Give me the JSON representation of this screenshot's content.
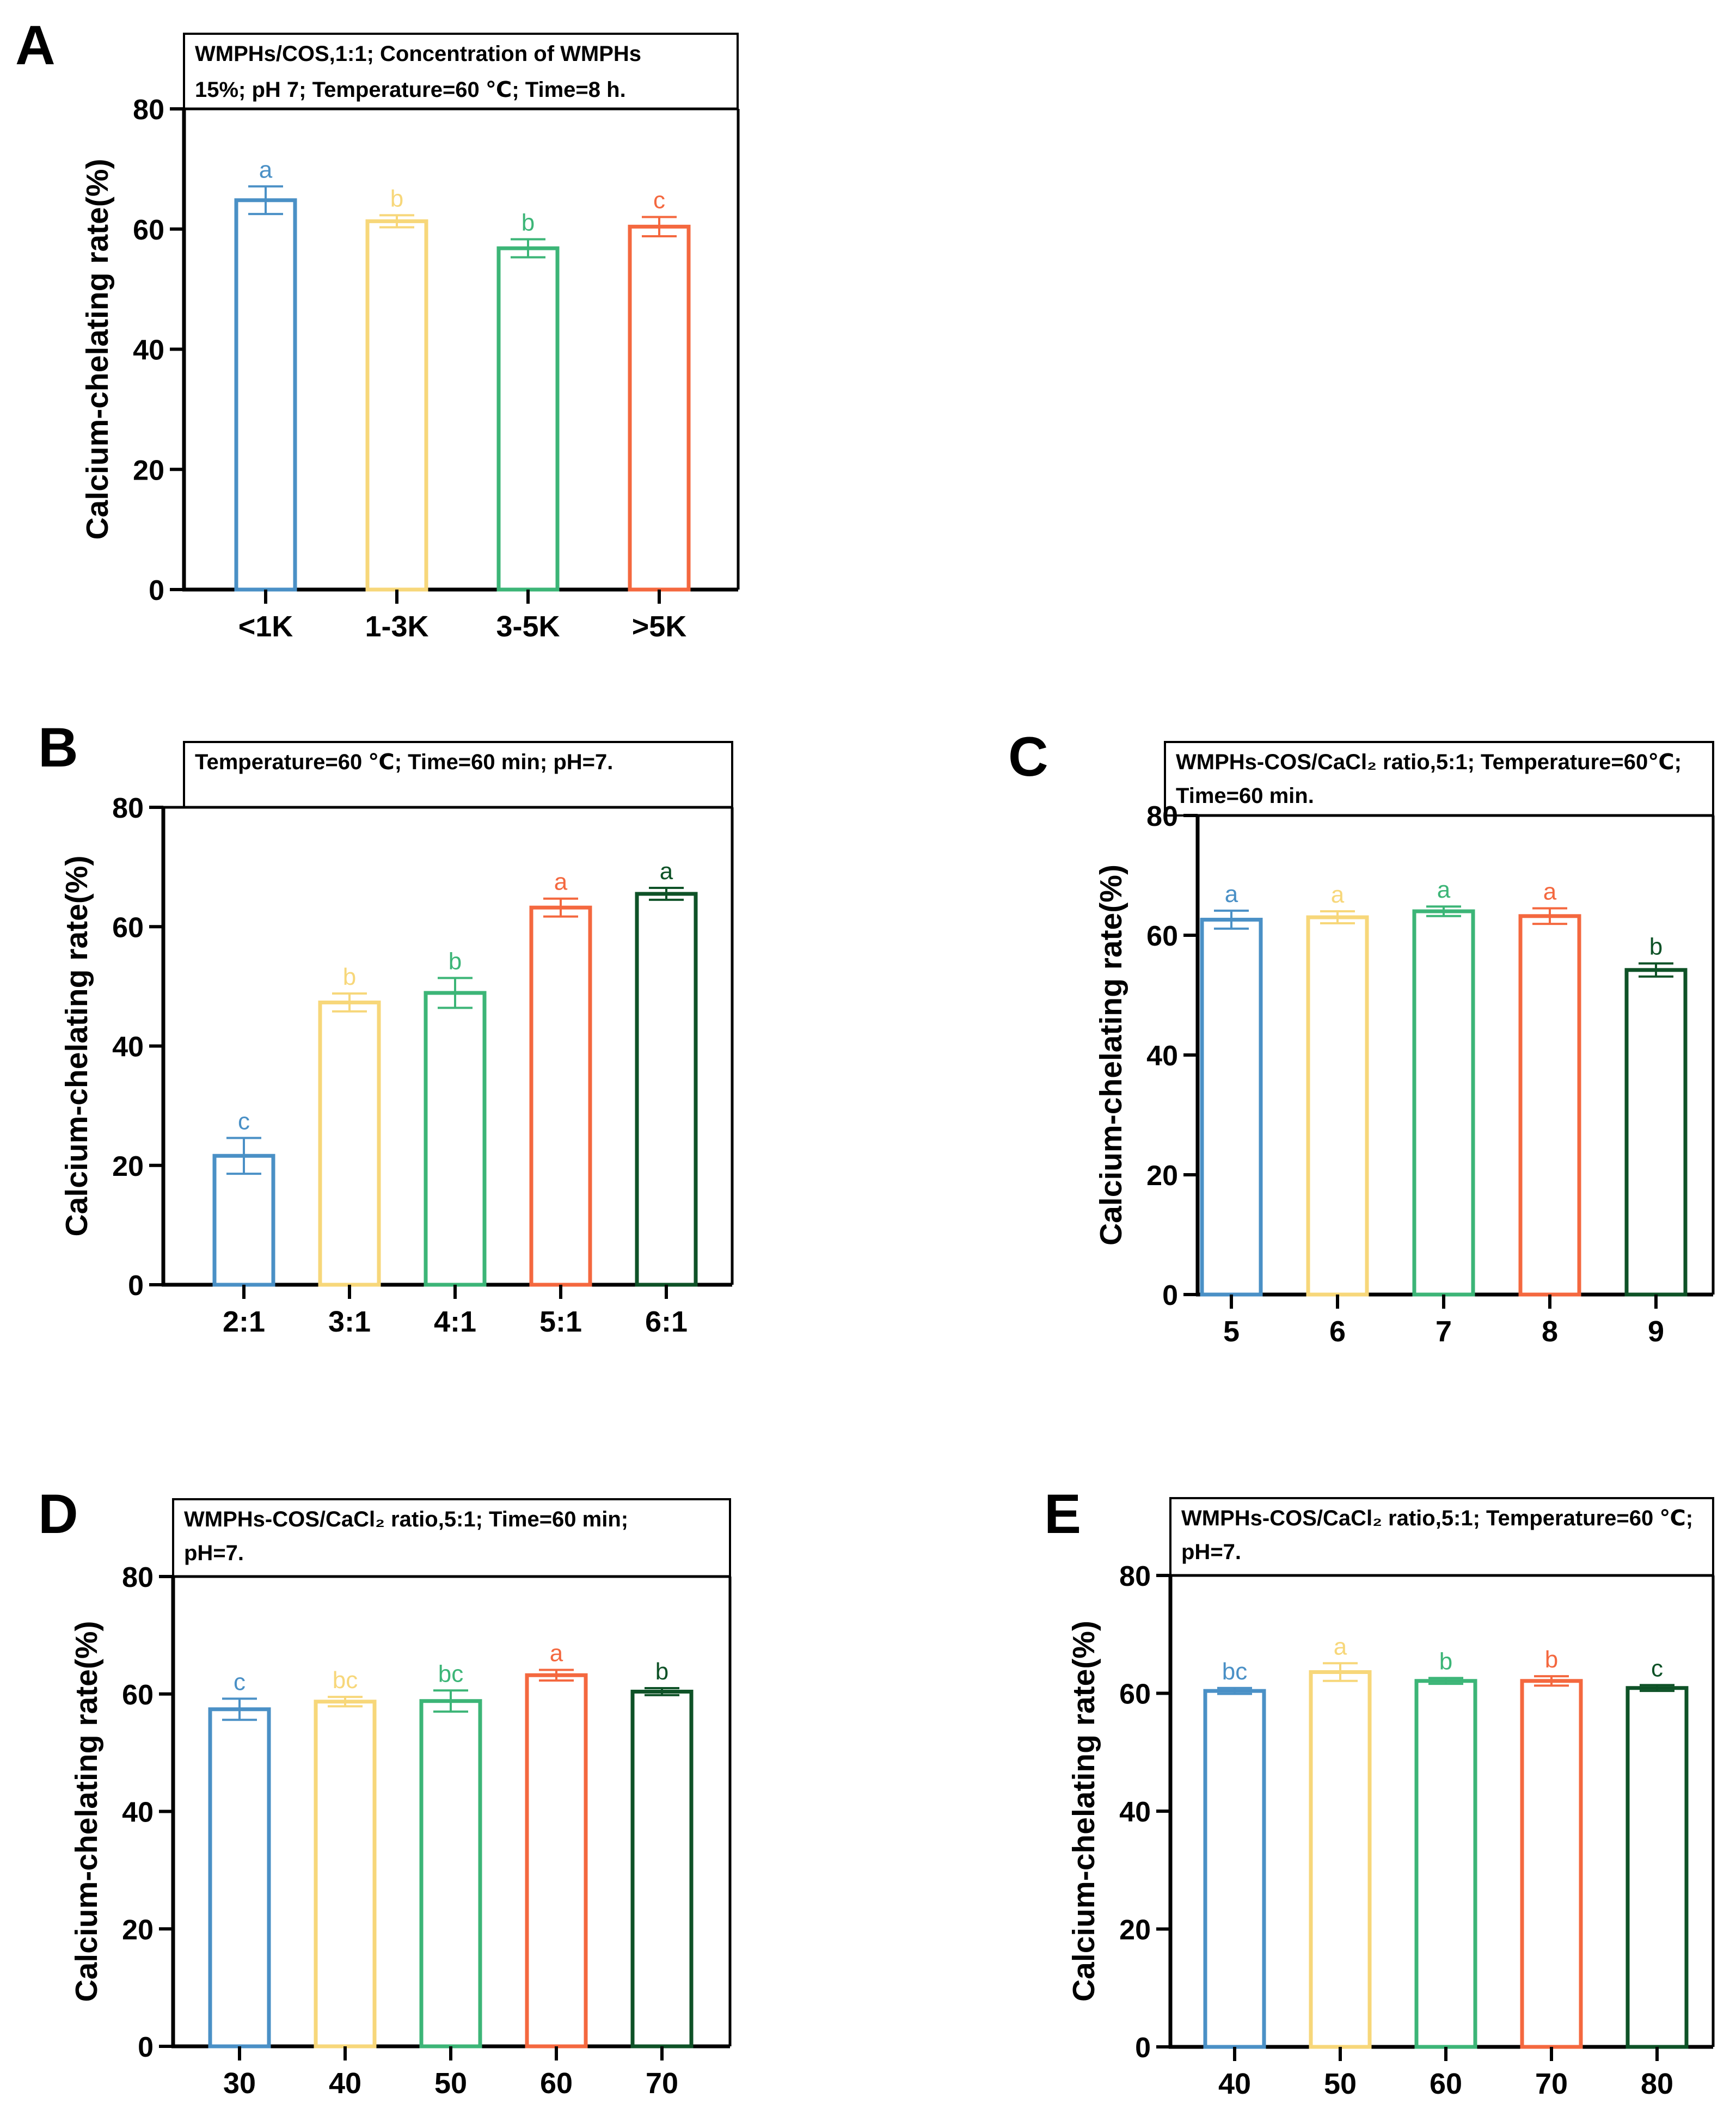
{
  "colors": {
    "blue": "#4a90c6",
    "yellow": "#f7d77a",
    "green": "#3cb577",
    "orange": "#f4683f",
    "darkgreen": "#0e5227",
    "axis": "#000000"
  },
  "chart_data": [
    {
      "panel": "A",
      "type": "bar",
      "annotation": [
        "WMPHs/COS,1:1; Concentration of WMPHs",
        "15%; pH 7; Temperature=60 ℃; Time=8 h."
      ],
      "categories": [
        "<1K",
        "1-3K",
        "3-5K",
        ">5K"
      ],
      "values": [
        64.8,
        61.3,
        56.8,
        60.4
      ],
      "errors": [
        2.3,
        1.0,
        1.5,
        1.6
      ],
      "significance": [
        "a",
        "b",
        "b",
        "c"
      ],
      "bar_colors": [
        "blue",
        "yellow",
        "green",
        "orange"
      ],
      "ylabel": "Calcium-chelating rate(%)",
      "xlabel": "",
      "ylim": [
        0,
        80
      ],
      "yticks": [
        "0",
        "20",
        "40",
        "60",
        "80"
      ]
    },
    {
      "panel": "B",
      "type": "bar",
      "annotation": [
        "Temperature=60 ℃; Time=60 min; pH=7."
      ],
      "categories": [
        "2:1",
        "3:1",
        "4:1",
        "5:1",
        "6:1"
      ],
      "values": [
        21.6,
        47.3,
        48.9,
        63.2,
        65.5
      ],
      "errors": [
        3.0,
        1.5,
        2.5,
        1.5,
        1.0
      ],
      "significance": [
        "c",
        "b",
        "b",
        "a",
        "a"
      ],
      "bar_colors": [
        "blue",
        "yellow",
        "green",
        "orange",
        "darkgreen"
      ],
      "ylabel": "Calcium-chelating rate(%)",
      "xlabel": "",
      "ylim": [
        0,
        80
      ],
      "yticks": [
        "0",
        "20",
        "40",
        "60",
        "80"
      ]
    },
    {
      "panel": "C",
      "type": "bar",
      "annotation": [
        "WMPHs-COS/CaCl₂ ratio,5:1; Temperature=60℃;",
        "Time=60 min."
      ],
      "categories": [
        "5",
        "6",
        "7",
        "8",
        "9"
      ],
      "values": [
        62.6,
        63.0,
        64.0,
        63.2,
        54.2
      ],
      "errors": [
        1.5,
        1.0,
        0.8,
        1.3,
        1.1
      ],
      "significance": [
        "a",
        "a",
        "a",
        "a",
        "b"
      ],
      "bar_colors": [
        "blue",
        "yellow",
        "green",
        "orange",
        "darkgreen"
      ],
      "ylabel": "Calcium-chelating rate(%)",
      "xlabel": "",
      "ylim": [
        0,
        80
      ],
      "yticks": [
        "0",
        "20",
        "40",
        "60",
        "80"
      ]
    },
    {
      "panel": "D",
      "type": "bar",
      "annotation": [
        "WMPHs-COS/CaCl₂ ratio,5:1; Time=60 min;",
        "pH=7."
      ],
      "categories": [
        "30",
        "40",
        "50",
        "60",
        "70"
      ],
      "values": [
        57.4,
        58.7,
        58.8,
        63.2,
        60.4
      ],
      "errors": [
        1.8,
        0.8,
        1.8,
        0.9,
        0.6
      ],
      "significance": [
        "c",
        "bc",
        "bc",
        "a",
        "b"
      ],
      "bar_colors": [
        "blue",
        "yellow",
        "green",
        "orange",
        "darkgreen"
      ],
      "ylabel": "Calcium-chelating rate(%)",
      "xlabel": "",
      "ylim": [
        0,
        80
      ],
      "yticks": [
        "0",
        "20",
        "40",
        "60",
        "80"
      ]
    },
    {
      "panel": "E",
      "type": "bar",
      "annotation": [
        "WMPHs-COS/CaCl₂ ratio,5:1; Temperature=60 ℃;",
        "pH=7."
      ],
      "categories": [
        "40",
        "50",
        "60",
        "70",
        "80"
      ],
      "values": [
        60.4,
        63.6,
        62.1,
        62.1,
        60.9
      ],
      "errors": [
        0.5,
        1.5,
        0.5,
        0.8,
        0.5
      ],
      "significance": [
        "bc",
        "a",
        "b",
        "b",
        "c"
      ],
      "bar_colors": [
        "blue",
        "yellow",
        "green",
        "orange",
        "darkgreen"
      ],
      "ylabel": "Calcium-chelating rate(%)",
      "xlabel": "",
      "ylim": [
        0,
        80
      ],
      "yticks": [
        "0",
        "20",
        "40",
        "60",
        "80"
      ]
    }
  ]
}
